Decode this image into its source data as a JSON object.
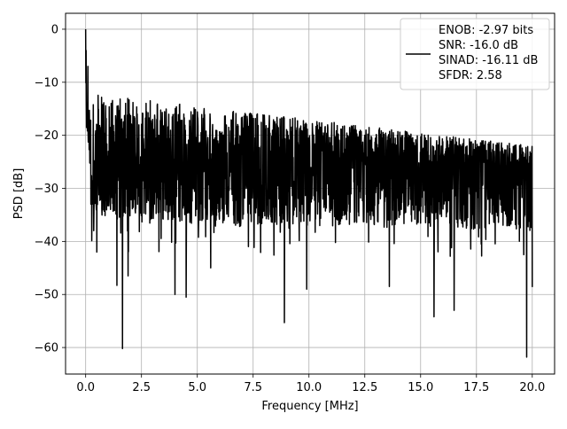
{
  "chart_data": {
    "type": "line",
    "title": "",
    "xlabel": "Frequency [MHz]",
    "ylabel": "PSD [dB]",
    "xlim": [
      -0.9,
      21.0
    ],
    "ylim": [
      -65,
      3
    ],
    "xticks": [
      0.0,
      2.5,
      5.0,
      7.5,
      10.0,
      12.5,
      15.0,
      17.5,
      20.0
    ],
    "xtick_labels": [
      "0.0",
      "2.5",
      "5.0",
      "7.5",
      "10.0",
      "12.5",
      "15.0",
      "17.5",
      "20.0"
    ],
    "yticks": [
      0,
      -10,
      -20,
      -30,
      -40,
      -50,
      -60
    ],
    "ytick_labels": [
      "0",
      "−10",
      "−20",
      "−30",
      "−40",
      "−50",
      "−60"
    ],
    "grid": true,
    "legend_position": "top-right",
    "series": [
      {
        "name": "ENOB: -2.97 bits\nSNR: -16.0 dB\nSINAD: -16.11 dB\nSFDR: 2.58",
        "legend_lines": [
          "ENOB: -2.97 bits",
          "SNR: -16.0 dB",
          "SINAD: -16.11 dB",
          "SFDR: 2.58"
        ],
        "color": "#000000",
        "x_range": [
          0.0,
          20.0
        ],
        "num_points": 2048,
        "noise_profile": {
          "peak_db": 0.0,
          "upper_envelope_db": [
            -12,
            -22
          ],
          "median_db": [
            -25,
            -26
          ],
          "lower_envelope_db": [
            -36,
            -38
          ]
        },
        "notable_points": [
          {
            "x": 0.0,
            "y": 0.0
          },
          {
            "x": 0.02,
            "y": -4.0
          },
          {
            "x": 0.05,
            "y": -15.0
          },
          {
            "x": 0.1,
            "y": -7.0
          },
          {
            "x": 0.15,
            "y": -19.0
          },
          {
            "x": 0.5,
            "y": -42.0
          },
          {
            "x": 1.4,
            "y": -48.3
          },
          {
            "x": 1.65,
            "y": -60.2
          },
          {
            "x": 1.9,
            "y": -46.5
          },
          {
            "x": 4.0,
            "y": -50.0
          },
          {
            "x": 4.5,
            "y": -50.5
          },
          {
            "x": 5.6,
            "y": -45.0
          },
          {
            "x": 8.9,
            "y": -55.3
          },
          {
            "x": 9.9,
            "y": -49.0
          },
          {
            "x": 13.6,
            "y": -48.5
          },
          {
            "x": 15.6,
            "y": -54.2
          },
          {
            "x": 16.5,
            "y": -53.0
          },
          {
            "x": 19.75,
            "y": -61.8
          },
          {
            "x": 20.0,
            "y": -48.6
          }
        ]
      }
    ]
  }
}
